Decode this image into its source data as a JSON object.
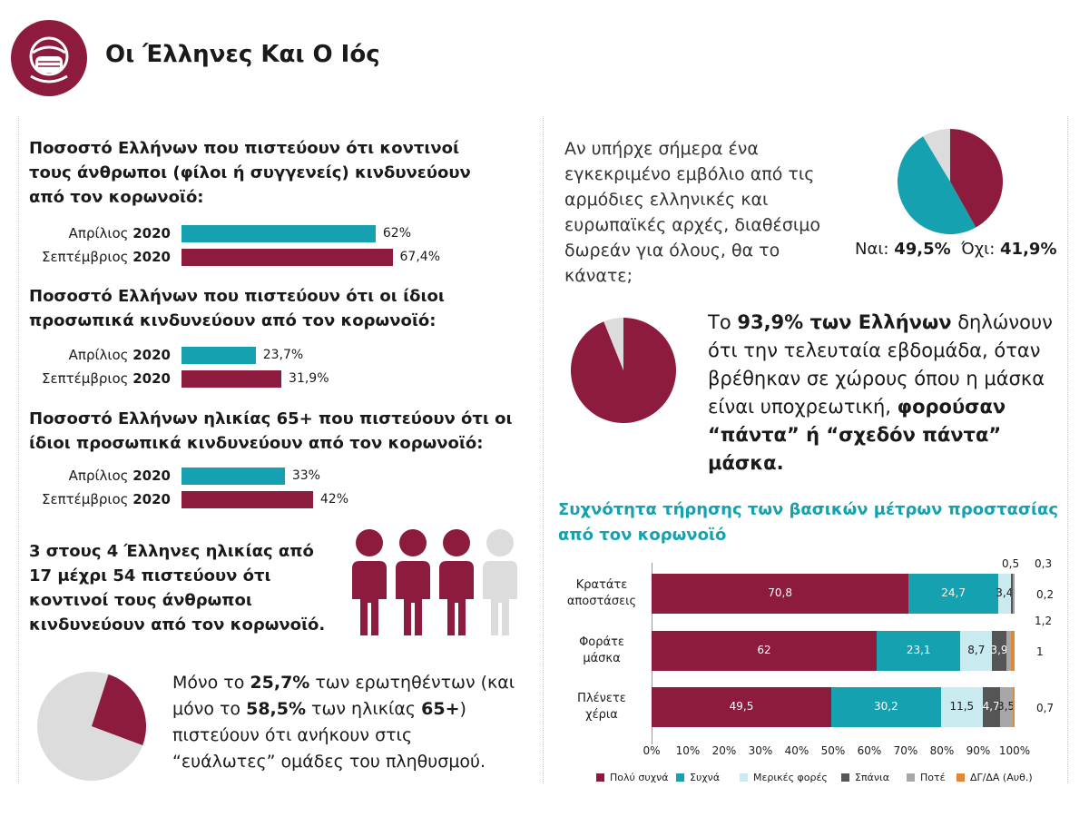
{
  "header": {
    "title": "Οι Έλληνες Και Ο Ιός",
    "logo_icon": "mask-face-icon"
  },
  "colors": {
    "teal": "#16a1b0",
    "maroon": "#8d1b3d",
    "light_blue": "#c9eaee",
    "dark_gray": "#555555",
    "gray": "#a7a7a7",
    "orange": "#e0883a",
    "light_gray": "#dcdcdc"
  },
  "sections": [
    {
      "question": "Ποσοστό Ελλήνων που πιστεύουν ότι κοντινοί τους άνθρωποι (φίλοι ή συγγενείς) κινδυνεύουν από τον κορωνοϊό:",
      "rows": [
        {
          "month": "Απρίλιος",
          "year": "2020",
          "value": 62,
          "value_label": "62%"
        },
        {
          "month": "Σεπτέμβριος",
          "year": "2020",
          "value": 67.4,
          "value_label": "67,4%"
        }
      ]
    },
    {
      "question": "Ποσοστό Ελλήνων που πιστεύουν ότι οι ίδιοι προσωπικά κινδυνεύουν από τον κορωνοϊό:",
      "rows": [
        {
          "month": "Απρίλιος",
          "year": "2020",
          "value": 23.7,
          "value_label": "23,7%"
        },
        {
          "month": "Σεπτέμβριος",
          "year": "2020",
          "value": 31.9,
          "value_label": "31,9%"
        }
      ]
    },
    {
      "question": "Ποσοστό Ελλήνων ηλικίας 65+ που πιστεύουν ότι οι ίδιοι προσωπικά κινδυνεύουν από τον κορωνοϊό:",
      "rows": [
        {
          "month": "Απρίλιος",
          "year": "2020",
          "value": 33,
          "value_label": "33%"
        },
        {
          "month": "Σεπτέμβριος",
          "year": "2020",
          "value": 42,
          "value_label": "42%"
        }
      ]
    }
  ],
  "people_stat": {
    "text": "3 στους 4 Έλληνες ηλικίας από 17 μέχρι 54 πιστεύουν ότι κοντινοί τους άνθρωποι κινδυνεύουν από τον κορωνοϊό.",
    "filled": 3,
    "total": 4,
    "icon": "person-icon"
  },
  "vulnerable": {
    "t1": "Μόνο το ",
    "b1": "25,7%",
    "t2": " των ερωτηθέντων (και μόνο το ",
    "b2": "58,5%",
    "t3": " των ηλικίας ",
    "b3": "65+",
    "t4": ") πιστεύουν ότι ανήκουν στις “ευάλωτες” ομάδες του πληθυσμού.",
    "value": 25.7
  },
  "vaccine": {
    "question": "Αν υπήρχε σήμερα ένα εγκεκριμένο εμβόλιο από τις αρμόδιες ελληνικές και ευρωπαϊκές αρχές, διαθέσιμο δωρεάν για όλους, θα το κάνατε;",
    "yes_label": "Ναι: ",
    "yes_value": "49,5%",
    "no_label": "Όχι: ",
    "no_value": "41,9%",
    "yes": 49.5,
    "no": 41.9
  },
  "mask": {
    "t1": "Το ",
    "b1": "93,9% των Ελλήνων",
    "t2": " δηλώνουν ότι την τελευταία εβδομάδα, όταν βρέθηκαν σε χώρους όπου η μάσκα είναι υποχρεωτική, ",
    "b2": "φορούσαν “πάντα” ή “σχεδόν πάντα” μάσκα.",
    "value": 93.9
  },
  "chart_data": {
    "type": "bar",
    "orientation": "horizontal-stacked",
    "title": "Συχνότητα τήρησης των βασικών μέτρων προστασίας από τον κορωνοϊό",
    "categories": [
      "Κρατάτε αποστάσεις",
      "Φοράτε μάσκα",
      "Πλένετε χέρια"
    ],
    "series": [
      {
        "name": "Πολύ συχνά",
        "color": "#8d1b3d",
        "values": [
          70.8,
          62,
          49.5
        ],
        "labels": [
          "70,8",
          "62",
          "49,5"
        ]
      },
      {
        "name": "Συχνά",
        "color": "#16a1b0",
        "values": [
          24.7,
          23.1,
          30.2
        ],
        "labels": [
          "24,7",
          "23,1",
          "30,2"
        ]
      },
      {
        "name": "Μερικές φορές",
        "color": "#c9eaee",
        "values": [
          3.4,
          8.7,
          11.5
        ],
        "labels": [
          "3,4",
          "8,7",
          "11,5"
        ]
      },
      {
        "name": "Σπάνια",
        "color": "#555555",
        "values": [
          0.5,
          3.9,
          4.7
        ],
        "labels": [
          "0,5",
          "3,9",
          "4,7"
        ]
      },
      {
        "name": "Ποτέ",
        "color": "#a7a7a7",
        "values": [
          0.3,
          1.2,
          3.5
        ],
        "labels": [
          "0,3",
          "1,2",
          "3,5"
        ]
      },
      {
        "name": "ΔΓ/ΔΑ (Αυθ.)",
        "color": "#e0883a",
        "values": [
          0.2,
          1,
          0.7
        ],
        "labels": [
          "0,2",
          "1",
          "0,7"
        ]
      }
    ],
    "xlim": [
      0,
      100
    ],
    "xticks": [
      "0%",
      "10%",
      "20%",
      "30%",
      "40%",
      "50%",
      "60%",
      "70%",
      "80%",
      "90%",
      "100%"
    ],
    "legend_position": "bottom",
    "grid": false
  }
}
